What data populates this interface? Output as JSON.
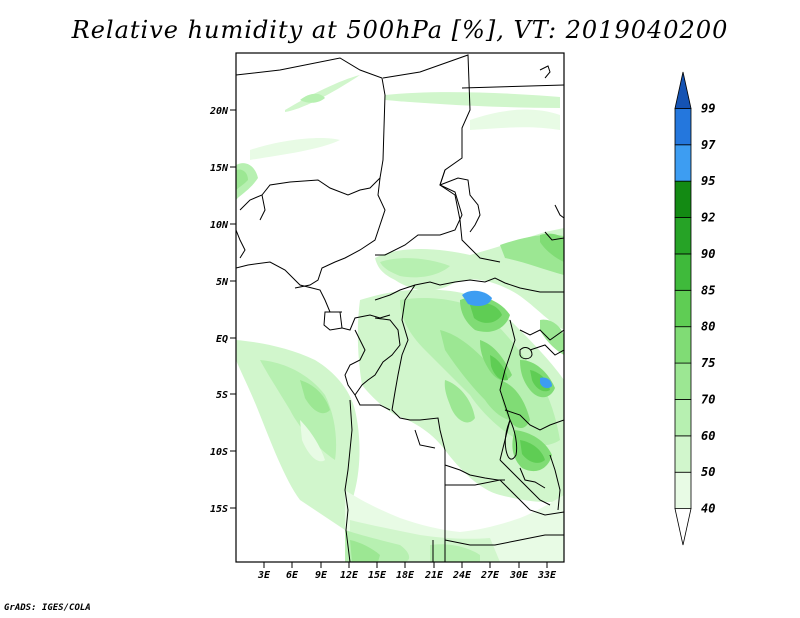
{
  "title": "Relative humidity at 500hPa [%], VT: 2019040200",
  "credit": "GrADS: IGES/COLA",
  "lat_labels": [
    "20N",
    "15N",
    "10N",
    "5N",
    "EQ",
    "5S",
    "10S",
    "15S"
  ],
  "lon_labels": [
    "3E",
    "6E",
    "9E",
    "12E",
    "15E",
    "18E",
    "21E",
    "24E",
    "27E",
    "30E",
    "33E"
  ],
  "colorbar": {
    "levels": [
      "40",
      "50",
      "60",
      "70",
      "75",
      "80",
      "85",
      "90",
      "92",
      "95",
      "97",
      "99"
    ],
    "colors": [
      "#ffffff",
      "#e8fbe5",
      "#d1f6cc",
      "#b7f0b1",
      "#9ce793",
      "#80dc75",
      "#5fcd54",
      "#3fba3b",
      "#26a326",
      "#138a13",
      "#3d9df2",
      "#2477dd",
      "#1553b3"
    ]
  }
}
